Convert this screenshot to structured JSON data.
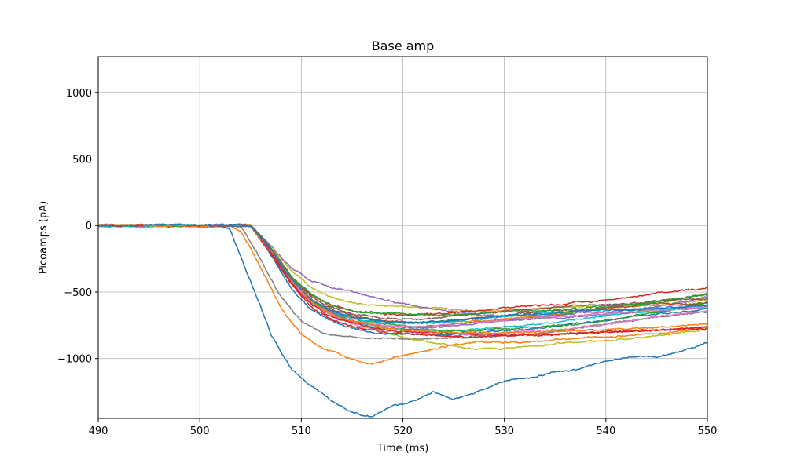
{
  "chart_data": {
    "type": "line",
    "title": "Base amp",
    "xlabel": "Time (ms)",
    "ylabel": "Picoamps (pA)",
    "xlim": [
      490,
      550
    ],
    "ylim": [
      -1450,
      1270
    ],
    "xticks": [
      490,
      500,
      510,
      520,
      530,
      540,
      550
    ],
    "yticks": [
      -1000,
      -500,
      0,
      500,
      1000
    ],
    "grid": true,
    "legend": "none",
    "series": [
      {
        "color": "#1f77b4",
        "x": [
          490,
          502,
          503,
          505,
          507,
          509,
          511,
          513,
          515,
          517,
          519,
          521,
          523,
          525,
          527,
          529,
          531,
          533,
          535,
          537,
          539,
          541,
          543,
          545,
          547,
          549,
          550
        ],
        "y": [
          0,
          0,
          -30,
          -420,
          -820,
          -1080,
          -1210,
          -1320,
          -1400,
          -1440,
          -1360,
          -1320,
          -1250,
          -1300,
          -1260,
          -1190,
          -1150,
          -1140,
          -1110,
          -1080,
          -1040,
          -1000,
          -980,
          -990,
          -950,
          -900,
          -880
        ]
      },
      {
        "color": "#ff7f0e",
        "x": [
          490,
          503,
          504,
          506,
          508,
          510,
          512,
          514,
          516,
          517,
          519,
          521,
          523,
          525,
          527,
          530,
          533,
          536,
          539,
          542,
          545,
          548,
          550
        ],
        "y": [
          0,
          0,
          -40,
          -320,
          -620,
          -820,
          -920,
          -980,
          -1030,
          -1040,
          -990,
          -960,
          -930,
          -900,
          -880,
          -880,
          -870,
          -860,
          -840,
          -830,
          -820,
          -790,
          -770
        ]
      },
      {
        "color": "#7f7f7f",
        "x": [
          490,
          504,
          506,
          508,
          510,
          512,
          514,
          516,
          518,
          520,
          523,
          526,
          530,
          535,
          540,
          545,
          550
        ],
        "y": [
          0,
          0,
          -260,
          -540,
          -720,
          -800,
          -830,
          -840,
          -850,
          -850,
          -850,
          -840,
          -830,
          -800,
          -740,
          -690,
          -650
        ]
      },
      {
        "color": "#bcbd22",
        "x": [
          490,
          505,
          507,
          509,
          511,
          513,
          515,
          517,
          519,
          521,
          523,
          525,
          527,
          530,
          533,
          536,
          539,
          542,
          545,
          548,
          550
        ],
        "y": [
          0,
          0,
          -190,
          -400,
          -550,
          -660,
          -720,
          -780,
          -820,
          -860,
          -880,
          -900,
          -930,
          -920,
          -900,
          -880,
          -870,
          -850,
          -830,
          -800,
          -780
        ]
      },
      {
        "color": "#bcbd22",
        "x": [
          490,
          505,
          507,
          509,
          511,
          513,
          515,
          517,
          520,
          523,
          526,
          529,
          532,
          535,
          538,
          541,
          544,
          547,
          550
        ],
        "y": [
          0,
          0,
          -160,
          -340,
          -470,
          -540,
          -580,
          -600,
          -610,
          -620,
          -640,
          -640,
          -630,
          -620,
          -610,
          -600,
          -590,
          -570,
          -560
        ]
      },
      {
        "color": "#9467bd",
        "x": [
          490,
          505,
          507,
          509,
          511,
          513,
          515,
          517,
          520,
          523,
          526,
          530,
          534,
          538,
          542,
          546,
          550
        ],
        "y": [
          0,
          0,
          -150,
          -320,
          -420,
          -470,
          -500,
          -540,
          -590,
          -630,
          -660,
          -680,
          -680,
          -660,
          -640,
          -600,
          -540
        ]
      },
      {
        "color": "#d62728",
        "x": [
          490,
          505,
          507,
          509,
          511,
          513,
          515,
          518,
          521,
          524,
          527,
          530,
          533,
          536,
          539,
          542,
          545,
          548,
          550
        ],
        "y": [
          0,
          0,
          -170,
          -380,
          -520,
          -600,
          -640,
          -660,
          -670,
          -660,
          -640,
          -620,
          -600,
          -590,
          -570,
          -540,
          -510,
          -480,
          -470
        ]
      },
      {
        "color": "#2ca02c",
        "x": [
          490,
          505,
          507,
          509,
          511,
          513,
          515,
          518,
          521,
          524,
          527,
          530,
          534,
          538,
          542,
          546,
          550
        ],
        "y": [
          0,
          0,
          -180,
          -400,
          -560,
          -650,
          -700,
          -740,
          -760,
          -750,
          -730,
          -710,
          -680,
          -640,
          -600,
          -560,
          -520
        ]
      },
      {
        "color": "#e377c2",
        "x": [
          490,
          505,
          507,
          509,
          511,
          513,
          515,
          518,
          521,
          524,
          527,
          530,
          534,
          538,
          542,
          546,
          550
        ],
        "y": [
          0,
          0,
          -200,
          -420,
          -580,
          -680,
          -740,
          -790,
          -810,
          -820,
          -820,
          -810,
          -790,
          -760,
          -720,
          -680,
          -640
        ]
      },
      {
        "color": "#8c564b",
        "x": [
          490,
          505,
          507,
          509,
          511,
          513,
          515,
          518,
          521,
          524,
          527,
          530,
          534,
          538,
          542,
          546,
          550
        ],
        "y": [
          0,
          0,
          -170,
          -380,
          -520,
          -610,
          -660,
          -700,
          -700,
          -690,
          -670,
          -640,
          -620,
          -600,
          -590,
          -560,
          -540
        ]
      },
      {
        "color": "#17becf",
        "x": [
          490,
          505,
          507,
          509,
          511,
          513,
          515,
          518,
          521,
          524,
          527,
          530,
          534,
          538,
          542,
          546,
          550
        ],
        "y": [
          0,
          0,
          -200,
          -430,
          -580,
          -680,
          -730,
          -770,
          -790,
          -790,
          -780,
          -760,
          -740,
          -700,
          -660,
          -640,
          -620
        ]
      },
      {
        "color": "#1f77b4",
        "x": [
          490,
          505,
          507,
          509,
          511,
          513,
          515,
          518,
          521,
          524,
          527,
          530,
          534,
          538,
          542,
          546,
          550
        ],
        "y": [
          0,
          0,
          -220,
          -470,
          -630,
          -720,
          -770,
          -810,
          -820,
          -820,
          -810,
          -790,
          -770,
          -730,
          -690,
          -660,
          -620
        ]
      },
      {
        "color": "#ff7f0e",
        "x": [
          490,
          505,
          507,
          509,
          511,
          513,
          515,
          518,
          521,
          524,
          527,
          530,
          534,
          538,
          542,
          546,
          550
        ],
        "y": [
          0,
          0,
          -180,
          -400,
          -550,
          -640,
          -690,
          -720,
          -730,
          -730,
          -720,
          -700,
          -670,
          -640,
          -610,
          -600,
          -600
        ]
      },
      {
        "color": "#2ca02c",
        "x": [
          490,
          505,
          507,
          509,
          511,
          513,
          515,
          518,
          521,
          524,
          527,
          530,
          534,
          538,
          542,
          546,
          550
        ],
        "y": [
          0,
          0,
          -190,
          -410,
          -570,
          -670,
          -720,
          -760,
          -780,
          -790,
          -790,
          -780,
          -760,
          -730,
          -690,
          -640,
          -580
        ]
      },
      {
        "color": "#d62728",
        "x": [
          490,
          505,
          507,
          509,
          511,
          513,
          515,
          518,
          521,
          524,
          527,
          530,
          534,
          538,
          542,
          546,
          550
        ],
        "y": [
          0,
          0,
          -210,
          -440,
          -610,
          -710,
          -760,
          -800,
          -820,
          -830,
          -840,
          -830,
          -820,
          -800,
          -790,
          -780,
          -770
        ]
      },
      {
        "color": "#9467bd",
        "x": [
          490,
          505,
          507,
          509,
          511,
          513,
          515,
          518,
          521,
          524,
          527,
          530,
          534,
          538,
          542,
          546,
          550
        ],
        "y": [
          0,
          0,
          -190,
          -400,
          -560,
          -660,
          -720,
          -760,
          -770,
          -760,
          -740,
          -720,
          -700,
          -680,
          -650,
          -620,
          -600
        ]
      },
      {
        "color": "#8c564b",
        "x": [
          490,
          505,
          507,
          509,
          511,
          513,
          515,
          518,
          521,
          524,
          527,
          530,
          534,
          538,
          542,
          546,
          550
        ],
        "y": [
          0,
          0,
          -170,
          -390,
          -540,
          -630,
          -680,
          -720,
          -730,
          -720,
          -700,
          -680,
          -650,
          -630,
          -610,
          -590,
          -580
        ]
      },
      {
        "color": "#e377c2",
        "x": [
          490,
          505,
          507,
          509,
          511,
          513,
          515,
          518,
          521,
          524,
          527,
          530,
          534,
          538,
          542,
          546,
          550
        ],
        "y": [
          0,
          0,
          -200,
          -420,
          -580,
          -670,
          -720,
          -750,
          -760,
          -750,
          -730,
          -710,
          -690,
          -670,
          -650,
          -630,
          -610
        ]
      },
      {
        "color": "#17becf",
        "x": [
          490,
          505,
          507,
          509,
          511,
          513,
          515,
          518,
          521,
          524,
          527,
          530,
          534,
          538,
          542,
          546,
          550
        ],
        "y": [
          0,
          0,
          -180,
          -400,
          -560,
          -650,
          -700,
          -730,
          -740,
          -730,
          -700,
          -680,
          -660,
          -640,
          -630,
          -620,
          -600
        ]
      },
      {
        "color": "#d62728",
        "x": [
          490,
          505,
          507,
          509,
          511,
          513,
          515,
          518,
          521,
          524,
          527,
          530,
          534,
          538,
          542,
          546,
          550
        ],
        "y": [
          0,
          0,
          -200,
          -430,
          -590,
          -690,
          -740,
          -780,
          -800,
          -810,
          -820,
          -820,
          -820,
          -810,
          -800,
          -780,
          -760
        ]
      },
      {
        "color": "#2ca02c",
        "x": [
          490,
          505,
          507,
          509,
          511,
          513,
          515,
          518,
          521,
          524,
          527,
          530,
          534,
          538,
          542,
          546,
          550
        ],
        "y": [
          0,
          0,
          -170,
          -380,
          -520,
          -600,
          -640,
          -660,
          -670,
          -670,
          -660,
          -650,
          -640,
          -620,
          -590,
          -560,
          -510
        ]
      },
      {
        "color": "#ff7f0e",
        "x": [
          490,
          505,
          507,
          509,
          511,
          513,
          515,
          518,
          521,
          524,
          527,
          530,
          534,
          538,
          542,
          546,
          550
        ],
        "y": [
          0,
          0,
          -190,
          -410,
          -570,
          -670,
          -720,
          -770,
          -790,
          -800,
          -810,
          -810,
          -800,
          -790,
          -780,
          -760,
          -740
        ]
      },
      {
        "color": "#1f77b4",
        "x": [
          490,
          505,
          507,
          509,
          511,
          513,
          515,
          518,
          521,
          524,
          527,
          530,
          534,
          538,
          542,
          546,
          550
        ],
        "y": [
          0,
          0,
          -180,
          -400,
          -550,
          -640,
          -690,
          -720,
          -730,
          -720,
          -700,
          -680,
          -660,
          -640,
          -630,
          -610,
          -600
        ]
      }
    ]
  }
}
